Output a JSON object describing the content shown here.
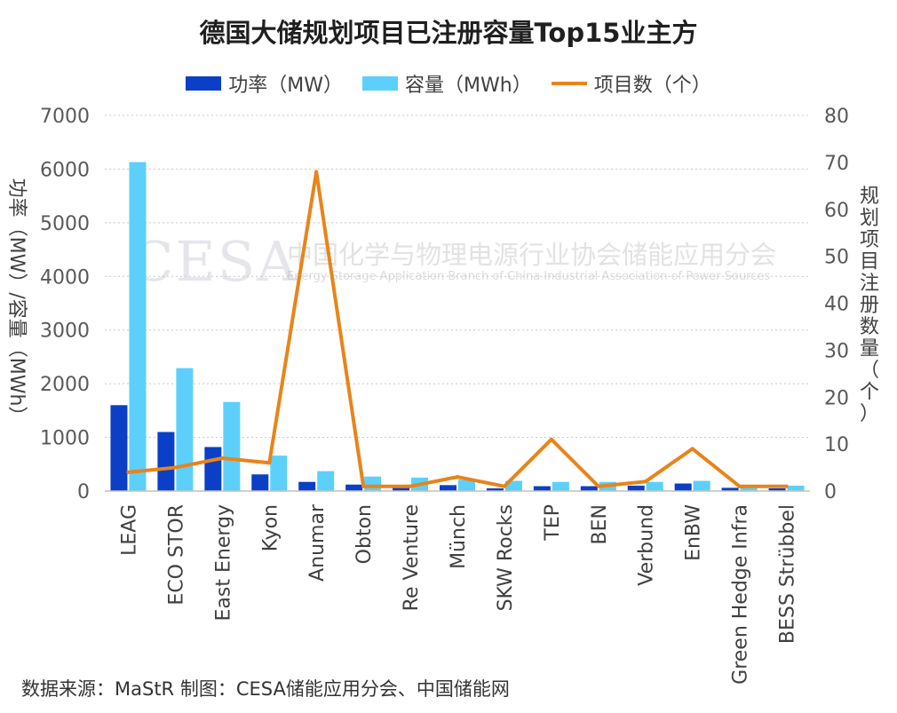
{
  "chart_data": {
    "type": "bar",
    "title": "德国大储规划项目已注册容量Top15业主方",
    "categories": [
      "LEAG",
      "ECO STOR",
      "East Energy",
      "Kyon",
      "Anumar",
      "Obton",
      "Re Venture",
      "Münch",
      "SKW Rocks",
      "TEP",
      "BEN",
      "Verbund",
      "EnBW",
      "Green Hedge Infra",
      "BESS Strübbel"
    ],
    "series": [
      {
        "name": "功率（MW）",
        "type": "bar",
        "axis": "left",
        "color": "#0a3fc6",
        "values": [
          1600,
          1100,
          820,
          310,
          170,
          120,
          90,
          110,
          50,
          90,
          90,
          100,
          140,
          60,
          50
        ]
      },
      {
        "name": "容量（MWh）",
        "type": "bar",
        "axis": "left",
        "color": "#5cd0fa",
        "values": [
          6130,
          2290,
          1660,
          660,
          370,
          270,
          250,
          210,
          190,
          170,
          170,
          170,
          190,
          90,
          100
        ]
      },
      {
        "name": "项目数（个）",
        "type": "line",
        "axis": "right",
        "color": "#e8841a",
        "values": [
          4,
          5,
          7,
          6,
          68,
          1,
          1,
          3,
          1,
          11,
          1,
          2,
          9,
          1,
          1
        ]
      }
    ],
    "ylabel": "功率（MW）/容量（MWh）",
    "ylim": [
      0,
      7000
    ],
    "yticks": [
      "0",
      "1000",
      "2000",
      "3000",
      "4000",
      "5000",
      "6000",
      "7000"
    ],
    "y2label": "规划项目注册数量（个）",
    "y2lim": [
      0,
      80
    ],
    "y2ticks": [
      "0",
      "10",
      "20",
      "30",
      "40",
      "50",
      "60",
      "70",
      "80"
    ],
    "grid": true,
    "legend_position": "top"
  },
  "watermark": {
    "logo": "CESA",
    "cn": "中国化学与物理电源行业协会储能应用分会",
    "en": "Energy Storage Application Branch of China Industrial Association of Power Sources"
  },
  "source_note": "数据来源：MaStR  制图：CESA储能应用分会、中国储能网"
}
